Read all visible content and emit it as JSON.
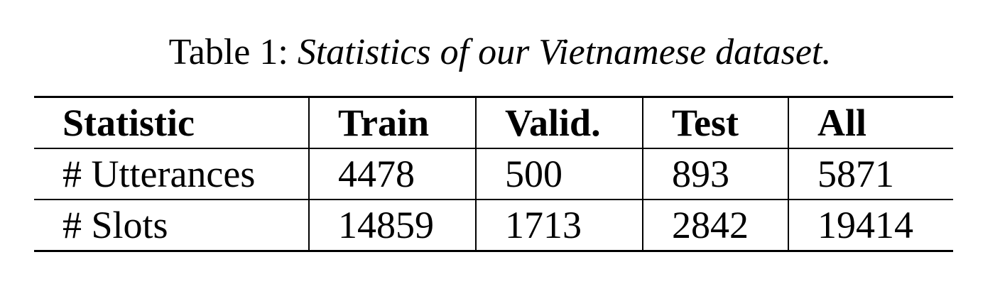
{
  "caption": {
    "label": "Table 1:",
    "text": "Statistics of our Vietnamese dataset."
  },
  "table": {
    "headers": [
      "Statistic",
      "Train",
      "Valid.",
      "Test",
      "All"
    ],
    "rows": [
      [
        "# Utterances",
        "4478",
        "500",
        "893",
        "5871"
      ],
      [
        "# Slots",
        "14859",
        "1713",
        "2842",
        "19414"
      ]
    ]
  }
}
